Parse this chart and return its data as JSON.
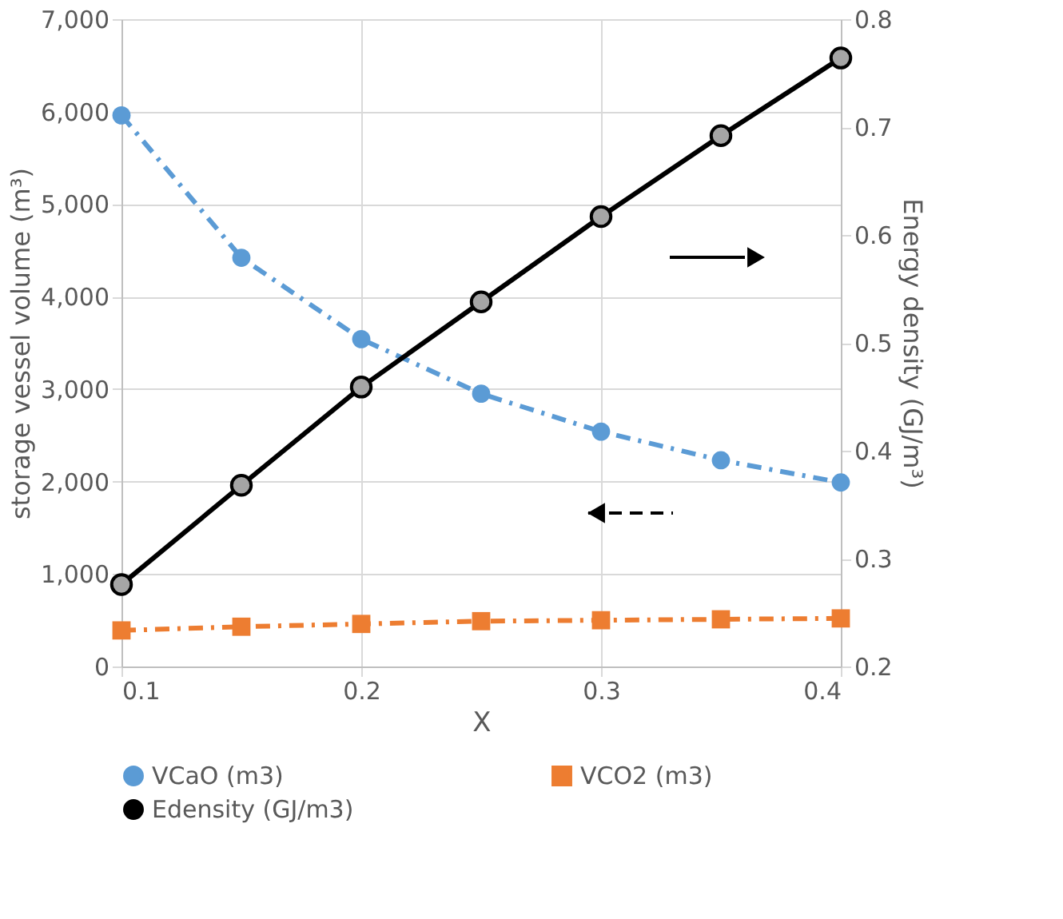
{
  "chart_data": {
    "type": "line",
    "xlabel": "X",
    "ylabel": "storage vessel volume (m³)",
    "y2label": "Energy density (GJ/m³)",
    "x": [
      0.1,
      0.15,
      0.2,
      0.25,
      0.3,
      0.35,
      0.4
    ],
    "xlim": [
      0.1,
      0.4
    ],
    "xticks": [
      0.1,
      0.2,
      0.3,
      0.4
    ],
    "ylim": [
      0,
      7000
    ],
    "yticks": [
      0,
      {
        "value": 1000,
        "label": "1,000"
      },
      {
        "value": 2000,
        "label": "2,000"
      },
      {
        "value": 3000,
        "label": "3,000"
      },
      {
        "value": 4000,
        "label": "4,000"
      },
      {
        "value": 5000,
        "label": "5,000"
      },
      {
        "value": 6000,
        "label": "6,000"
      },
      {
        "value": 7000,
        "label": "7,000"
      }
    ],
    "y2lim": [
      0.2,
      0.8
    ],
    "y2ticks": [
      0.2,
      0.3,
      0.4,
      0.5,
      0.6,
      0.7,
      0.8
    ],
    "grid": true,
    "legend": "bottom",
    "series": [
      {
        "name": "VCaO (m3)",
        "color": "#5b9bd5",
        "marker": "circle",
        "line_style": "dashed",
        "values": [
          5960,
          4420,
          3540,
          2950,
          2540,
          2230,
          1990
        ]
      },
      {
        "name": "VCO2 (m3)",
        "color": "#ed7d31",
        "marker": "square",
        "line_style": "dashed",
        "values": [
          390,
          430,
          460,
          490,
          500,
          510,
          520
        ]
      },
      {
        "name": "Edensity (GJ/m3)",
        "color": "#000000",
        "marker": "circle",
        "line_style": "solid",
        "axis": "y2",
        "values": [
          0.276,
          0.368,
          0.459,
          0.538,
          0.617,
          0.692,
          0.764
        ]
      }
    ]
  }
}
